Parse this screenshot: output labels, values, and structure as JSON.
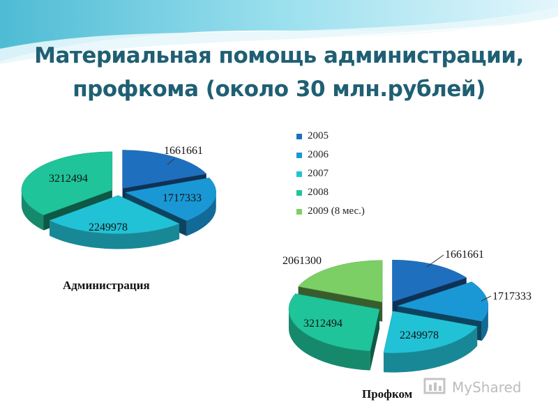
{
  "title_line1": "Материальная помощь администрации,",
  "title_line2": "профкома (около 30 млн.рублей)",
  "colors": {
    "2005": "#1f6fbf",
    "2006": "#1a98d6",
    "2007": "#22c2d6",
    "2008": "#1fc49a",
    "2009": "#7ccf64",
    "title": "#1f5f73"
  },
  "legend": [
    {
      "label": "2005",
      "color": "#1f6fbf"
    },
    {
      "label": "2006",
      "color": "#1a98d6"
    },
    {
      "label": "2007",
      "color": "#22c2d6"
    },
    {
      "label": "2008",
      "color": "#1fc49a"
    },
    {
      "label": "2009 (8 мес.)",
      "color": "#7ccf64"
    }
  ],
  "chart_data": [
    {
      "type": "pie",
      "title": "Администрация",
      "categories": [
        "2005",
        "2006",
        "2007",
        "2008"
      ],
      "values": [
        1661661,
        1717333,
        2249978,
        3212494
      ],
      "labels": [
        "1661661",
        "1717333",
        "2249978",
        "3212494"
      ],
      "legend": "right"
    },
    {
      "type": "pie",
      "title": "Профком",
      "categories": [
        "2005",
        "2006",
        "2007",
        "2008",
        "2009 (8 мес.)"
      ],
      "values": [
        1661661,
        1717333,
        2249978,
        3212494,
        2061300
      ],
      "labels": [
        "1661661",
        "1717333",
        "2249978",
        "3212494",
        "2061300"
      ],
      "legend": "right"
    }
  ],
  "watermark": {
    "text": "MyShared"
  }
}
